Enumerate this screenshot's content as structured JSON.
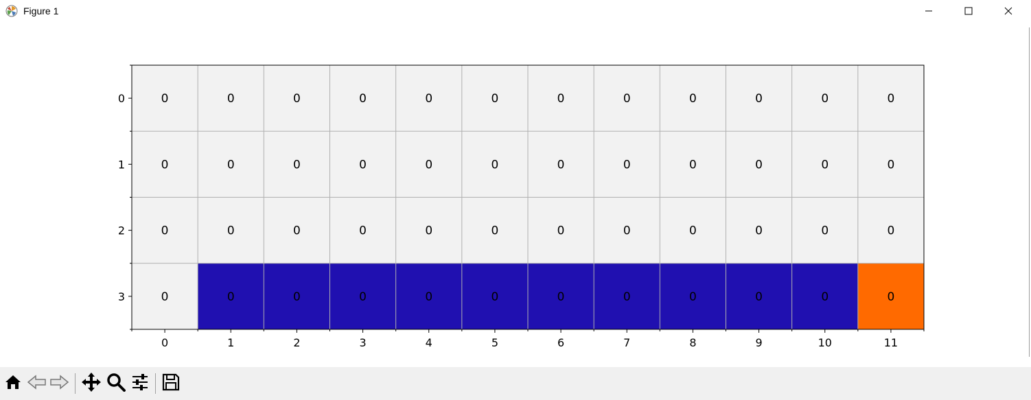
{
  "window": {
    "title": "Figure 1",
    "controls": {
      "minimize_icon": "minimize-icon",
      "maximize_icon": "maximize-icon",
      "close_icon": "close-icon"
    }
  },
  "toolbar": {
    "buttons": [
      {
        "name": "home",
        "icon": "home-icon"
      },
      {
        "name": "back",
        "icon": "back-arrow-icon"
      },
      {
        "name": "forward",
        "icon": "forward-arrow-icon"
      },
      {
        "name": "pan",
        "icon": "move-icon"
      },
      {
        "name": "zoom",
        "icon": "zoom-icon"
      },
      {
        "name": "configure-subplots",
        "icon": "sliders-icon"
      },
      {
        "name": "save",
        "icon": "save-icon"
      }
    ]
  },
  "chart_data": {
    "type": "heatmap",
    "x_ticks": [
      "0",
      "1",
      "2",
      "3",
      "4",
      "5",
      "6",
      "7",
      "8",
      "9",
      "10",
      "11"
    ],
    "y_ticks": [
      "0",
      "1",
      "2",
      "3"
    ],
    "cell_values": [
      [
        0,
        0,
        0,
        0,
        0,
        0,
        0,
        0,
        0,
        0,
        0,
        0
      ],
      [
        0,
        0,
        0,
        0,
        0,
        0,
        0,
        0,
        0,
        0,
        0,
        0
      ],
      [
        0,
        0,
        0,
        0,
        0,
        0,
        0,
        0,
        0,
        0,
        0,
        0
      ],
      [
        0,
        0,
        0,
        0,
        0,
        0,
        0,
        0,
        0,
        0,
        0,
        0
      ]
    ],
    "cell_types": [
      [
        "empty",
        "empty",
        "empty",
        "empty",
        "empty",
        "empty",
        "empty",
        "empty",
        "empty",
        "empty",
        "empty",
        "empty"
      ],
      [
        "empty",
        "empty",
        "empty",
        "empty",
        "empty",
        "empty",
        "empty",
        "empty",
        "empty",
        "empty",
        "empty",
        "empty"
      ],
      [
        "empty",
        "empty",
        "empty",
        "empty",
        "empty",
        "empty",
        "empty",
        "empty",
        "empty",
        "empty",
        "empty",
        "empty"
      ],
      [
        "empty",
        "cliff",
        "cliff",
        "cliff",
        "cliff",
        "cliff",
        "cliff",
        "cliff",
        "cliff",
        "cliff",
        "cliff",
        "goal"
      ]
    ],
    "colors": {
      "empty": "#f2f2f2",
      "cliff": "#2010b0",
      "goal": "#ff6a00",
      "gridline": "#b0b0b0",
      "axis": "#000000"
    },
    "grid": true,
    "xlabel": "",
    "ylabel": "",
    "title": ""
  }
}
